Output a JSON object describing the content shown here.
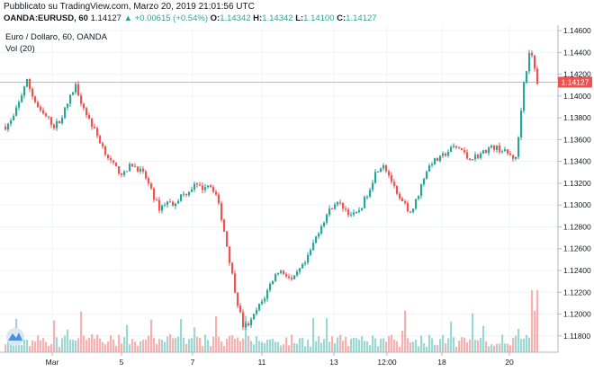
{
  "header": {
    "published": "Pubblicato su TradingView.com, Marzo 20, 2019 21:01:56 UTC",
    "symbol": "OANDA:EURUSD, 60",
    "last": "1.14127",
    "change": "+0.00615 (+0.54%)",
    "o_label": "O:",
    "o_value": "1.14342",
    "h_label": "H:",
    "h_value": "1.14342",
    "l_label": "L:",
    "l_value": "1.14100",
    "c_label": "C:",
    "c_value": "1.14127"
  },
  "chart_data": {
    "type": "candlestick",
    "title": "Euro / Dollaro, 60, OANDA",
    "volume_label": "Vol (20)",
    "ylim": [
      1.1165,
      1.1465
    ],
    "y_ticks": [
      "1.14600",
      "1.14400",
      "1.14200",
      "1.14000",
      "1.13800",
      "1.13600",
      "1.13400",
      "1.13200",
      "1.13000",
      "1.12800",
      "1.12600",
      "1.12400",
      "1.12200",
      "1.12000",
      "1.11800"
    ],
    "x_ticks": [
      "Mar",
      "5",
      "7",
      "11",
      "13",
      "12:00",
      "18",
      "20"
    ],
    "last_price_label": "1.14127",
    "last_price": 1.14127,
    "colors": {
      "up": "#26a69a",
      "down": "#ef5350",
      "last_price_line": "#ef5350"
    },
    "close_path": [
      1.1372,
      1.1378,
      1.1395,
      1.1415,
      1.1398,
      1.1385,
      1.138,
      1.1372,
      1.138,
      1.1395,
      1.141,
      1.1392,
      1.1378,
      1.1365,
      1.1352,
      1.134,
      1.1332,
      1.1328,
      1.1338,
      1.1333,
      1.1326,
      1.131,
      1.1297,
      1.1303,
      1.1301,
      1.1308,
      1.1312,
      1.1318,
      1.1315,
      1.132,
      1.1312,
      1.1285,
      1.125,
      1.1215,
      1.1188,
      1.1192,
      1.1205,
      1.1215,
      1.123,
      1.124,
      1.1237,
      1.123,
      1.124,
      1.1248,
      1.1265,
      1.128,
      1.1292,
      1.1302,
      1.13,
      1.1293,
      1.129,
      1.13,
      1.1315,
      1.1332,
      1.1338,
      1.1325,
      1.1307,
      1.13,
      1.1293,
      1.131,
      1.133,
      1.134,
      1.1342,
      1.1348,
      1.1353,
      1.1352,
      1.1343,
      1.1344,
      1.1347,
      1.1352,
      1.1353,
      1.135,
      1.1346,
      1.1342,
      1.141,
      1.1443,
      1.1413
    ],
    "volume_peak": 1
  }
}
